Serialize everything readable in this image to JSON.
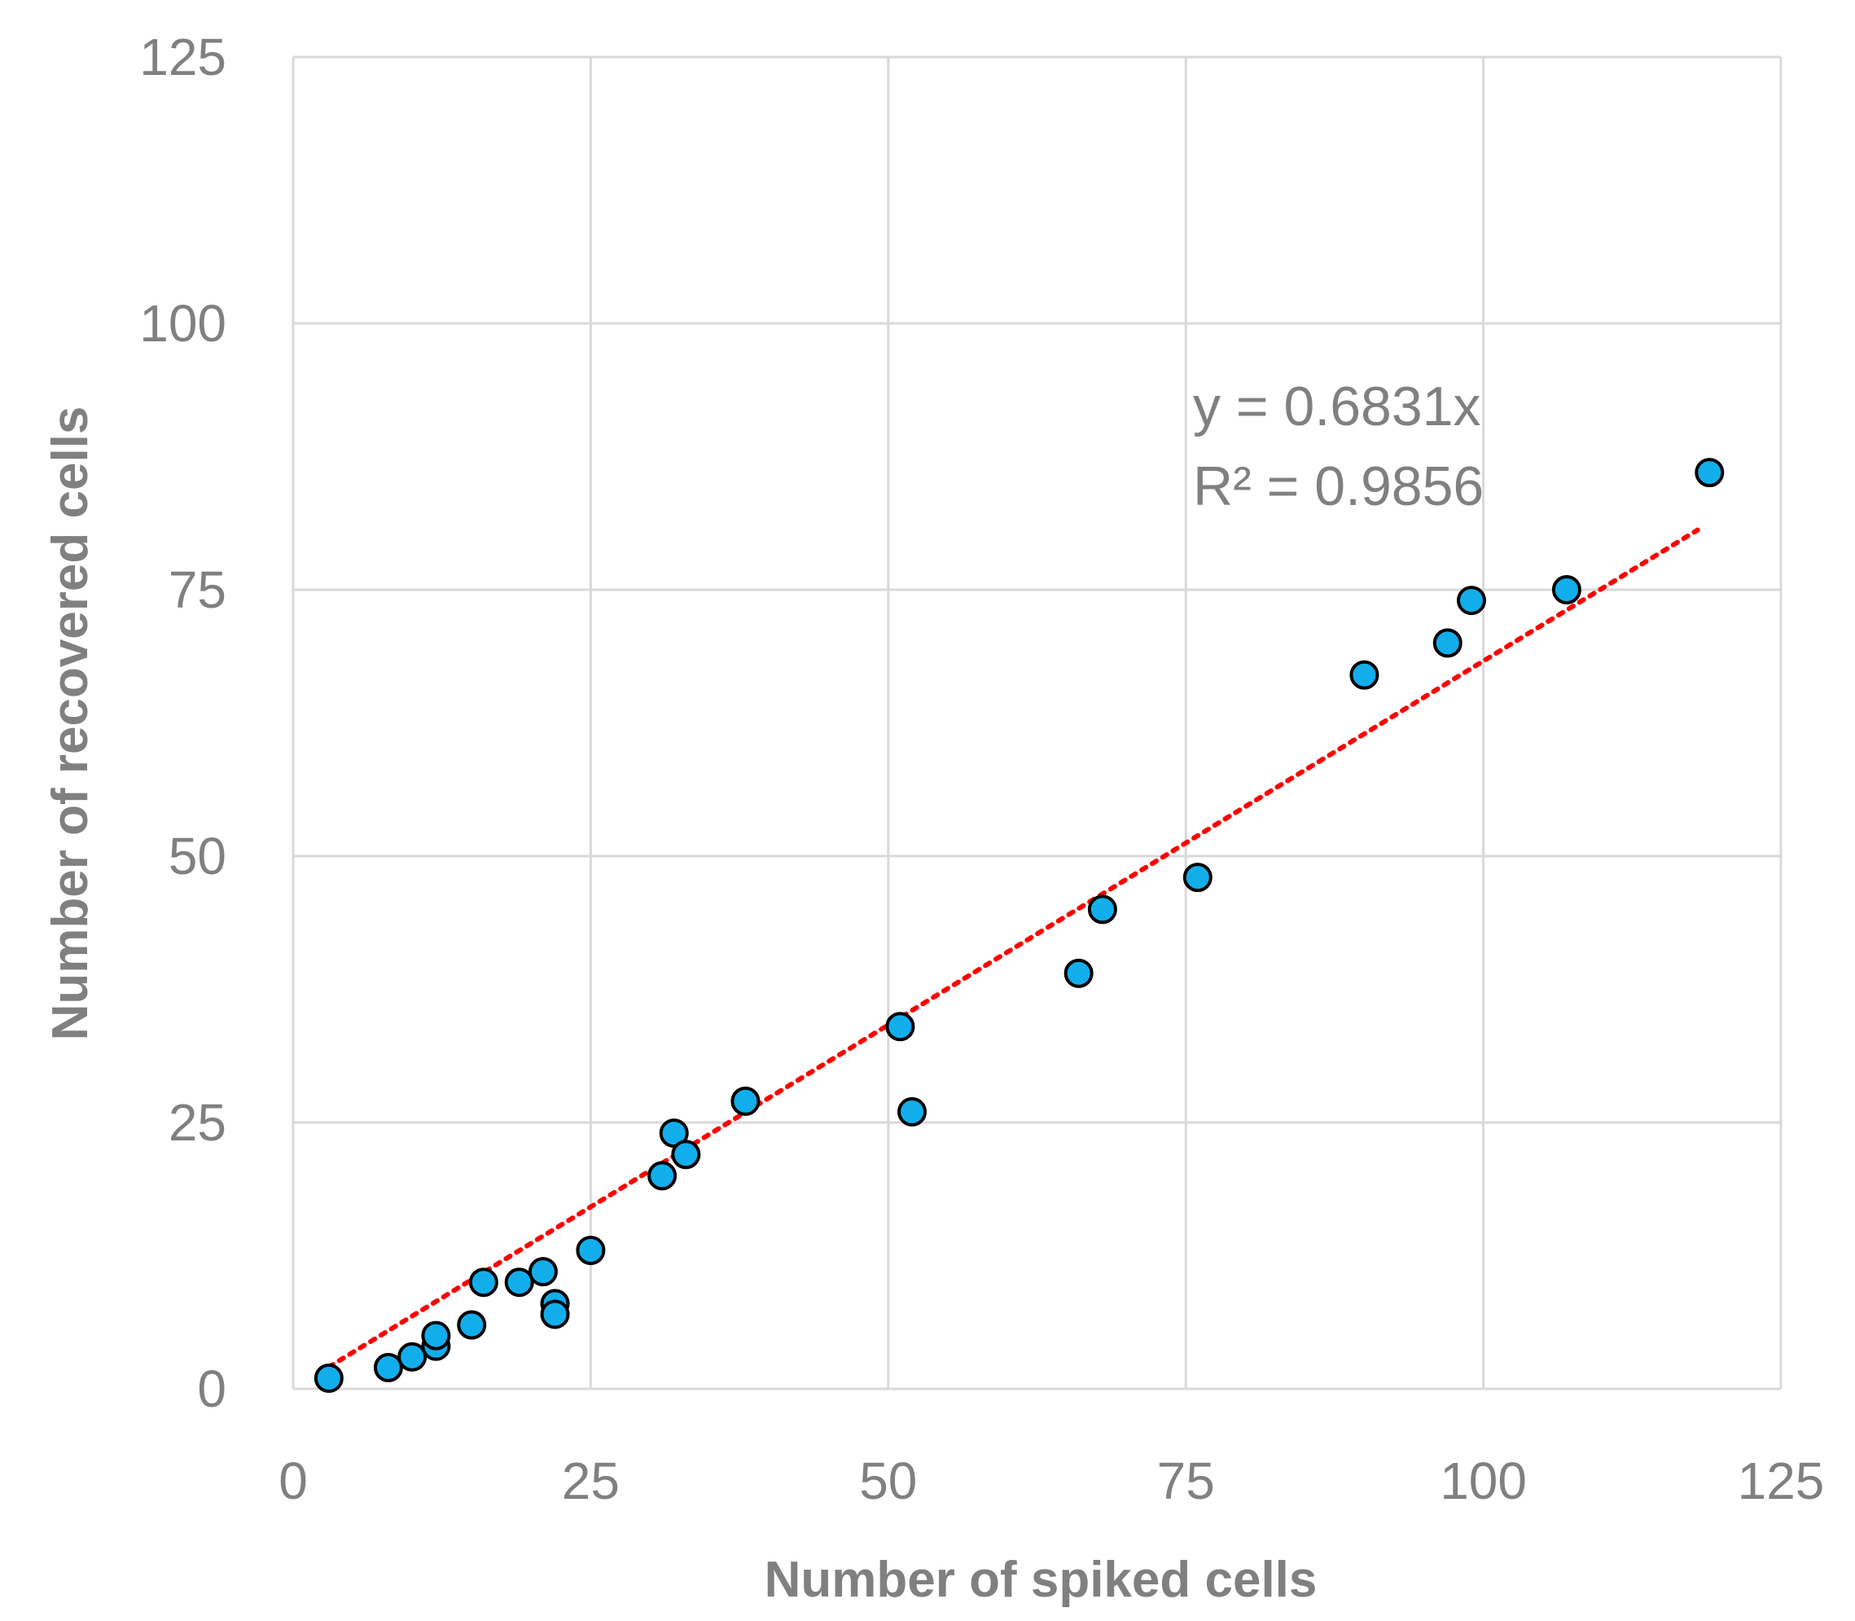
{
  "chart_data": {
    "type": "scatter",
    "title": "",
    "xlabel": "Number of spiked cells",
    "ylabel": "Number of recovered cells",
    "xlim": [
      0,
      125
    ],
    "ylim": [
      0,
      125
    ],
    "xticks": [
      0,
      25,
      50,
      75,
      100,
      125
    ],
    "yticks": [
      0,
      25,
      50,
      75,
      100,
      125
    ],
    "grid": true,
    "legend": "none",
    "series": [
      {
        "points": [
          {
            "x": 3,
            "y": 1
          },
          {
            "x": 8,
            "y": 2
          },
          {
            "x": 10,
            "y": 3
          },
          {
            "x": 12,
            "y": 4
          },
          {
            "x": 12,
            "y": 5
          },
          {
            "x": 15,
            "y": 6
          },
          {
            "x": 16,
            "y": 10
          },
          {
            "x": 19,
            "y": 10
          },
          {
            "x": 21,
            "y": 11
          },
          {
            "x": 22,
            "y": 8
          },
          {
            "x": 22,
            "y": 7
          },
          {
            "x": 25,
            "y": 13
          },
          {
            "x": 31,
            "y": 20
          },
          {
            "x": 32,
            "y": 24
          },
          {
            "x": 33,
            "y": 22
          },
          {
            "x": 38,
            "y": 27
          },
          {
            "x": 51,
            "y": 34
          },
          {
            "x": 52,
            "y": 26
          },
          {
            "x": 66,
            "y": 39
          },
          {
            "x": 68,
            "y": 45
          },
          {
            "x": 76,
            "y": 48
          },
          {
            "x": 90,
            "y": 67
          },
          {
            "x": 97,
            "y": 70
          },
          {
            "x": 99,
            "y": 74
          },
          {
            "x": 107,
            "y": 75
          },
          {
            "x": 119,
            "y": 86
          }
        ]
      }
    ],
    "trendline": {
      "type": "linear-through-origin",
      "slope": 0.6831,
      "x_range": [
        3,
        118
      ],
      "style": "dotted",
      "equation_label": "y = 0.6831x",
      "r2_label": "R² = 0.9856"
    },
    "colors": {
      "marker_fill": "#12AEEC",
      "marker_stroke": "#000000",
      "trendline": "#FF0000",
      "grid": "#D9D9D9",
      "text": "#808080"
    }
  }
}
